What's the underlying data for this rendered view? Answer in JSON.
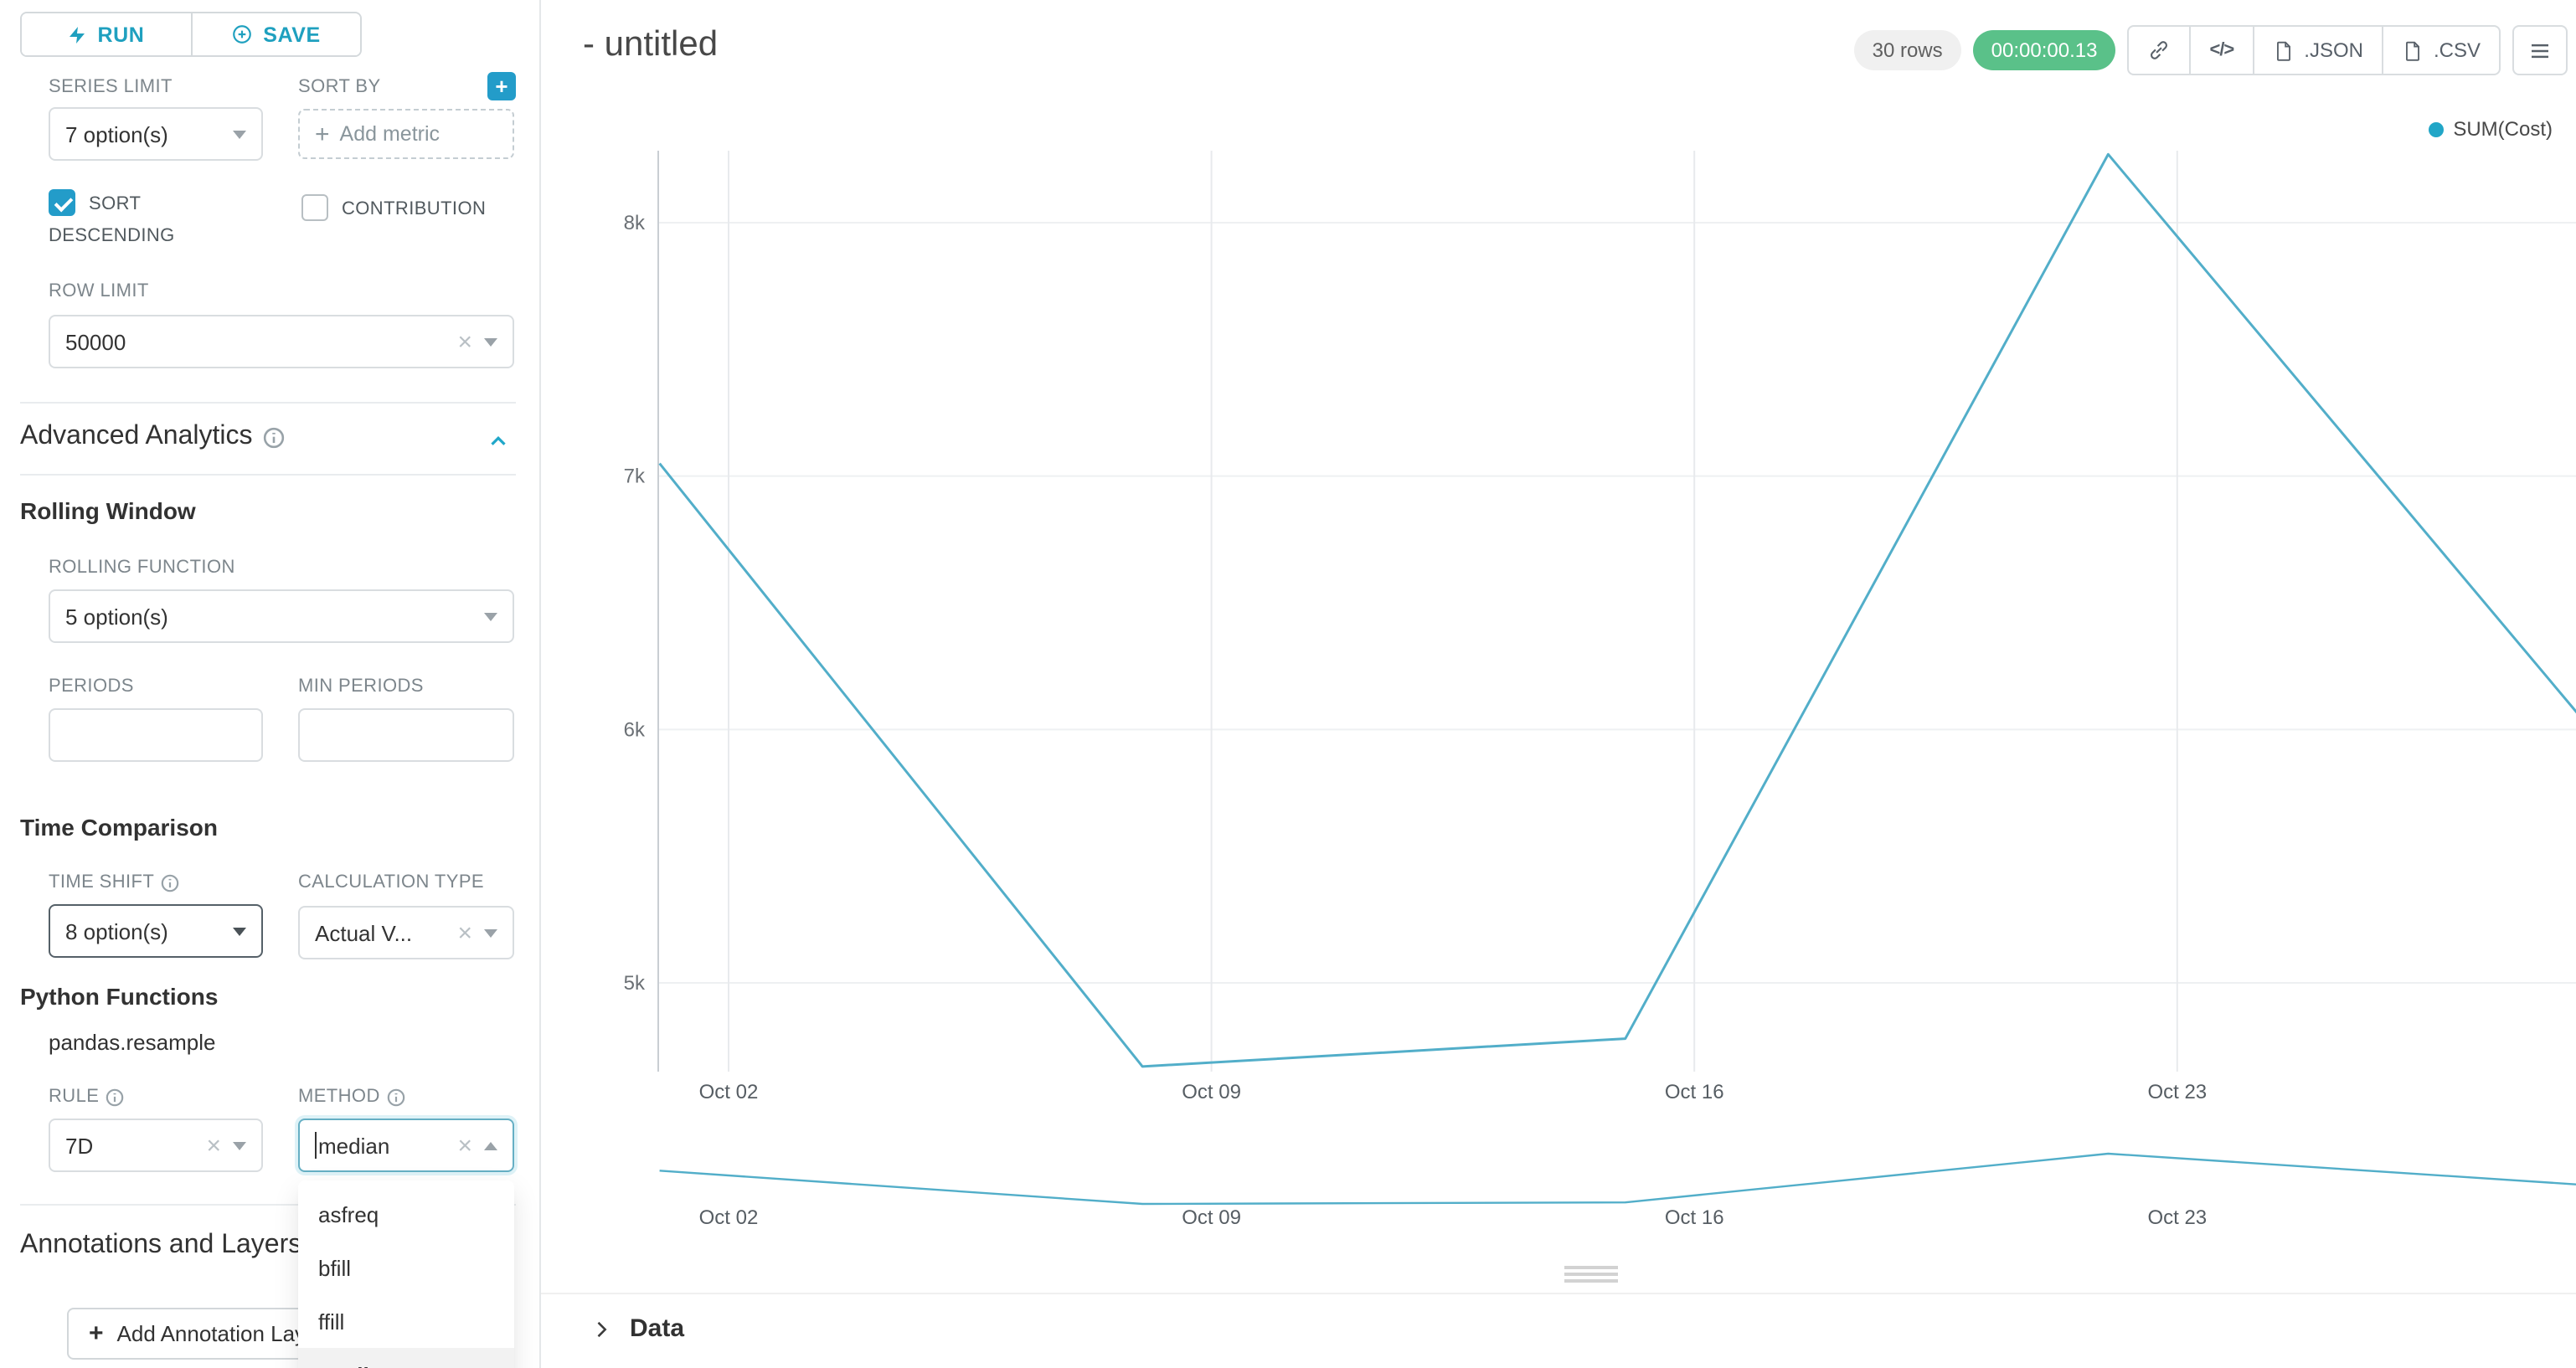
{
  "sidebar": {
    "run_label": "RUN",
    "save_label": "SAVE",
    "series_limit": {
      "label": "SERIES LIMIT",
      "value": "7 option(s)"
    },
    "sort_by": {
      "label": "SORT BY",
      "placeholder": "Add metric"
    },
    "sort_descending_label": "SORT DESCENDING",
    "contribution_label": "CONTRIBUTION",
    "row_limit": {
      "label": "ROW LIMIT",
      "value": "50000"
    },
    "advanced_analytics_title": "Advanced Analytics",
    "rolling_window_title": "Rolling Window",
    "rolling_function": {
      "label": "ROLLING FUNCTION",
      "value": "5 option(s)"
    },
    "periods_label": "PERIODS",
    "min_periods_label": "MIN PERIODS",
    "time_comparison_title": "Time Comparison",
    "time_shift": {
      "label": "TIME SHIFT",
      "value": "8 option(s)"
    },
    "calculation_type": {
      "label": "CALCULATION TYPE",
      "value": "Actual V..."
    },
    "python_functions_title": "Python Functions",
    "python_functions_subtitle": "pandas.resample",
    "rule": {
      "label": "RULE",
      "value": "7D"
    },
    "method": {
      "label": "METHOD",
      "value": "median",
      "options": [
        "asfreq",
        "bfill",
        "ffill",
        "median"
      ],
      "selected": "median"
    },
    "annotations_title": "Annotations and Layers",
    "add_annotation_label": "Add Annotation Layer"
  },
  "header": {
    "title": "- untitled",
    "rows_badge": "30 rows",
    "timer": "00:00:00.13",
    "code_label": "</>",
    "json_label": ".JSON",
    "csv_label": ".CSV"
  },
  "data_panel": {
    "title": "Data"
  },
  "chart_data": {
    "type": "line",
    "title": "",
    "legend": [
      {
        "name": "SUM(Cost)",
        "color": "#21a6c7"
      }
    ],
    "legend_position": "top-right",
    "x": [
      "Oct 01",
      "Oct 08",
      "Oct 15",
      "Oct 22",
      "Oct 29"
    ],
    "series": [
      {
        "name": "SUM(Cost)",
        "values": [
          7050,
          4670,
          4780,
          8270,
          6000
        ],
        "color": "#52aec9"
      }
    ],
    "x_tick_labels": [
      "Oct 02",
      "Oct 09",
      "Oct 16",
      "Oct 23"
    ],
    "y_tick_labels": [
      "8k",
      "7k",
      "6k",
      "5k"
    ],
    "y_tick_values": [
      8000,
      7000,
      6000,
      5000
    ],
    "ylim": [
      4500,
      8450
    ],
    "grid": true,
    "has_preview_strip": true
  }
}
